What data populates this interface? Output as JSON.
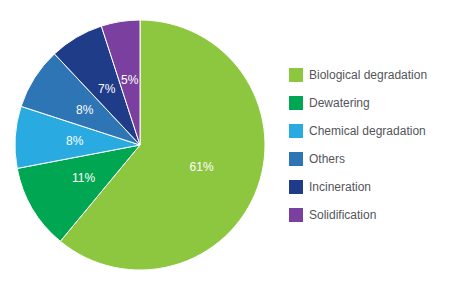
{
  "chart_data": {
    "type": "pie",
    "categories": [
      "Biological degradation",
      "Dewatering",
      "Chemical degradation",
      "Others",
      "Incineration",
      "Solidification"
    ],
    "values": [
      61,
      11,
      8,
      8,
      7,
      5
    ],
    "value_labels": [
      "61%",
      "11%",
      "8%",
      "8%",
      "7%",
      "5%"
    ],
    "colors": [
      "#8dc63f",
      "#00a651",
      "#29abe2",
      "#2e75b6",
      "#1f3c88",
      "#7b3fa0"
    ],
    "data_labels": true,
    "legend": "right"
  }
}
